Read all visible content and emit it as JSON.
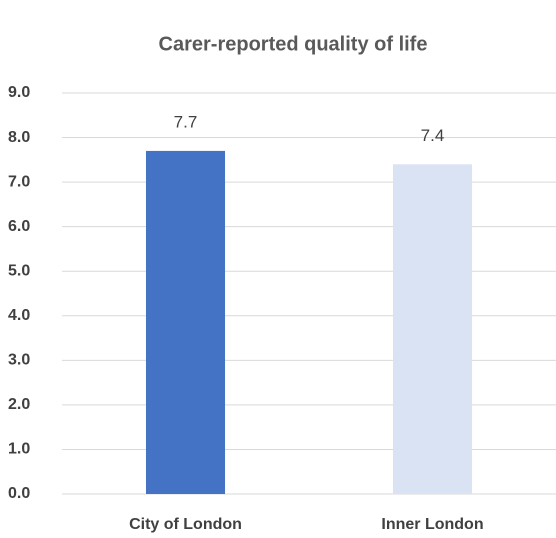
{
  "chart_data": {
    "type": "bar",
    "title": "Carer-reported quality of life",
    "categories": [
      "City of London",
      "Inner London"
    ],
    "values": [
      7.7,
      7.4
    ],
    "colors": [
      "#4472c4",
      "#dae3f3"
    ],
    "ylim": [
      0,
      9
    ],
    "yticks": [
      {
        "value": 0,
        "label": "0.0"
      },
      {
        "value": 1,
        "label": "1.0"
      },
      {
        "value": 2,
        "label": "2.0"
      },
      {
        "value": 3,
        "label": "3.0"
      },
      {
        "value": 4,
        "label": "4.0"
      },
      {
        "value": 5,
        "label": "5.0"
      },
      {
        "value": 6,
        "label": "6.0"
      },
      {
        "value": 7,
        "label": "7.0"
      },
      {
        "value": 8,
        "label": "8.0"
      },
      {
        "value": 9,
        "label": "9.0"
      }
    ],
    "grid": true
  }
}
